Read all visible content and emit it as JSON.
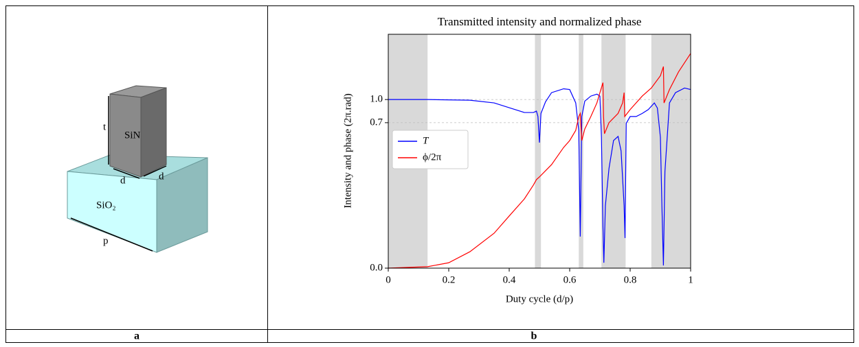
{
  "diagram": {
    "labels": {
      "height": "t",
      "pillar": "SiN",
      "width_front": "d",
      "width_side": "d",
      "substrate": "SiO₂",
      "period": "p"
    }
  },
  "captions": [
    "a",
    "b"
  ],
  "chart_data": {
    "type": "line",
    "title": "Transmitted intensity and normalized phase",
    "x_label": "Duty cycle (d/p)",
    "y_label": "Intensity and phase (2π.rad)",
    "xlim": [
      0,
      1
    ],
    "ylim": [
      0,
      1.85
    ],
    "xticks": [
      0,
      0.2,
      0.4,
      0.6,
      0.8,
      1
    ],
    "yticks": [
      {
        "value": 0,
        "label": "0.0"
      },
      {
        "value": 0.7,
        "label": "0.7"
      },
      {
        "value": 1,
        "label": "1.0"
      }
    ],
    "grid": true,
    "legend": "center left",
    "shaded_regions": [
      [
        0,
        0.13
      ],
      [
        0.485,
        0.505
      ],
      [
        0.63,
        0.645
      ],
      [
        0.705,
        0.785
      ],
      [
        0.87,
        1
      ]
    ],
    "shade_color": "#d9d9d9",
    "series": [
      {
        "name": "T",
        "color": "#0000ff",
        "x": [
          0,
          0.13,
          0.27,
          0.35,
          0.4,
          0.45,
          0.48,
          0.49,
          0.495,
          0.5,
          0.505,
          0.52,
          0.54,
          0.58,
          0.6,
          0.62,
          0.63,
          0.635,
          0.64,
          0.65,
          0.67,
          0.69,
          0.7,
          0.705,
          0.71,
          0.713,
          0.718,
          0.73,
          0.745,
          0.76,
          0.77,
          0.78,
          0.783,
          0.787,
          0.8,
          0.82,
          0.84,
          0.86,
          0.88,
          0.89,
          0.9,
          0.905,
          0.91,
          0.915,
          0.93,
          0.95,
          0.98,
          1
        ],
        "values": [
          1,
          1,
          0.991,
          0.956,
          0.894,
          0.832,
          0.832,
          0.85,
          0.78,
          0.604,
          0.82,
          0.97,
          1.09,
          1.14,
          1.13,
          0.956,
          0.663,
          0.152,
          0.78,
          0.98,
          1.045,
          1.07,
          1.045,
          0.63,
          0.2,
          0.026,
          0.3,
          0.48,
          0.614,
          0.634,
          0.564,
          0.3,
          0.145,
          0.697,
          0.78,
          0.78,
          0.82,
          0.87,
          0.956,
          0.89,
          0.63,
          0.3,
          0.013,
          0.465,
          0.956,
          1.09,
          1.15,
          1.13
        ]
      },
      {
        "name": "ϕ/2π",
        "color": "#ff0000",
        "x": [
          0,
          0.13,
          0.2,
          0.27,
          0.35,
          0.4,
          0.45,
          0.48,
          0.49,
          0.5,
          0.54,
          0.58,
          0.6,
          0.62,
          0.63,
          0.635,
          0.64,
          0.65,
          0.67,
          0.69,
          0.7,
          0.71,
          0.712,
          0.715,
          0.73,
          0.76,
          0.775,
          0.78,
          0.782,
          0.8,
          0.84,
          0.87,
          0.9,
          0.91,
          0.912,
          0.93,
          0.96,
          1
        ],
        "values": [
          0,
          0.007,
          0.026,
          0.079,
          0.168,
          0.251,
          0.333,
          0.4,
          0.426,
          0.439,
          0.498,
          0.581,
          0.614,
          0.663,
          0.78,
          0.82,
          0.614,
          0.67,
          0.78,
          0.956,
          1.09,
          1.22,
          0.78,
          0.647,
          0.7,
          0.82,
          0.956,
          1.09,
          0.78,
          0.87,
          1.045,
          1.15,
          1.31,
          1.43,
          0.956,
          1.13,
          1.36,
          1.6
        ]
      }
    ]
  }
}
